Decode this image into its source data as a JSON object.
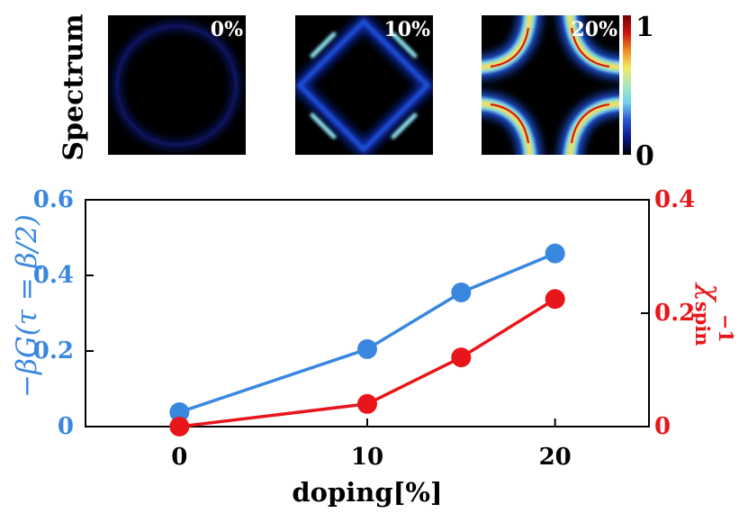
{
  "chart_data": [
    {
      "type": "heatmap",
      "title": "Spectrum",
      "panels": [
        {
          "label": "0%",
          "doping": 0,
          "intensity": 0.08
        },
        {
          "label": "10%",
          "doping": 10,
          "intensity": 0.55
        },
        {
          "label": "20%",
          "doping": 20,
          "intensity": 1.0
        }
      ],
      "colorbar": {
        "min_label": "0",
        "max_label": "1",
        "range": [
          0,
          1
        ],
        "stops": [
          "#000000",
          "#0a1a8a",
          "#2a55d8",
          "#6fd3ec",
          "#a8e8c0",
          "#f5e860",
          "#f08820",
          "#d01010",
          "#700000"
        ]
      }
    },
    {
      "type": "line",
      "xlabel": "doping[%]",
      "xlim": [
        -5,
        25
      ],
      "xticks": [
        "0",
        "10",
        "20"
      ],
      "xtick_values": [
        0,
        10,
        20
      ],
      "y_left": {
        "label": "−βG(τ = β/2)",
        "lim": [
          0,
          0.6
        ],
        "ticks": [
          "0",
          "0.2",
          "0.4",
          "0.6"
        ],
        "tick_values": [
          0,
          0.2,
          0.4,
          0.6
        ],
        "color": "#3a87e0"
      },
      "y_right": {
        "label": "χ",
        "sup": "−1",
        "sub": "spin",
        "lim": [
          0,
          0.4
        ],
        "ticks": [
          "0",
          "0.2",
          "0.4"
        ],
        "tick_values": [
          0,
          0.2,
          0.4
        ],
        "color": "#e8161b"
      },
      "series": [
        {
          "name": "−βG(τ = β/2)",
          "axis": "left",
          "color": "#3a87e0",
          "x": [
            0,
            10,
            15,
            20
          ],
          "values": [
            0.038,
            0.205,
            0.355,
            0.458
          ]
        },
        {
          "name": "χspin⁻¹",
          "axis": "right",
          "color": "#e8161b",
          "x": [
            0,
            10,
            15,
            20
          ],
          "values": [
            0.0,
            0.04,
            0.122,
            0.225
          ]
        }
      ]
    }
  ]
}
